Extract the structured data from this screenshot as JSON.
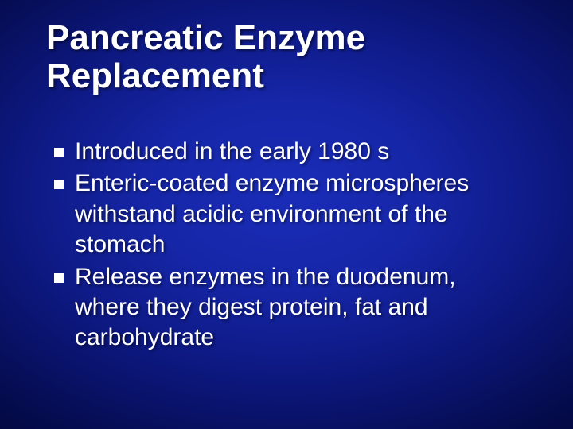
{
  "slide": {
    "background": {
      "gradient_center": "#1a2db8",
      "gradient_mid": "#0d1880",
      "gradient_edge": "#000428"
    },
    "title": {
      "text": "Pancreatic Enzyme Replacement",
      "font_size_pt": 44,
      "font_weight": "bold",
      "color": "#ffffff"
    },
    "body": {
      "font_size_pt": 30,
      "color": "#ffffff",
      "bullet_style": "square",
      "bullet_color": "#ffffff",
      "bullets": [
        {
          "text": "Introduced in the early 1980 s"
        },
        {
          "text": "Enteric-coated enzyme microspheres withstand acidic environment of the stomach"
        },
        {
          "text": "Release enzymes in the duodenum, where they digest  protein, fat and carbohydrate"
        }
      ]
    }
  }
}
